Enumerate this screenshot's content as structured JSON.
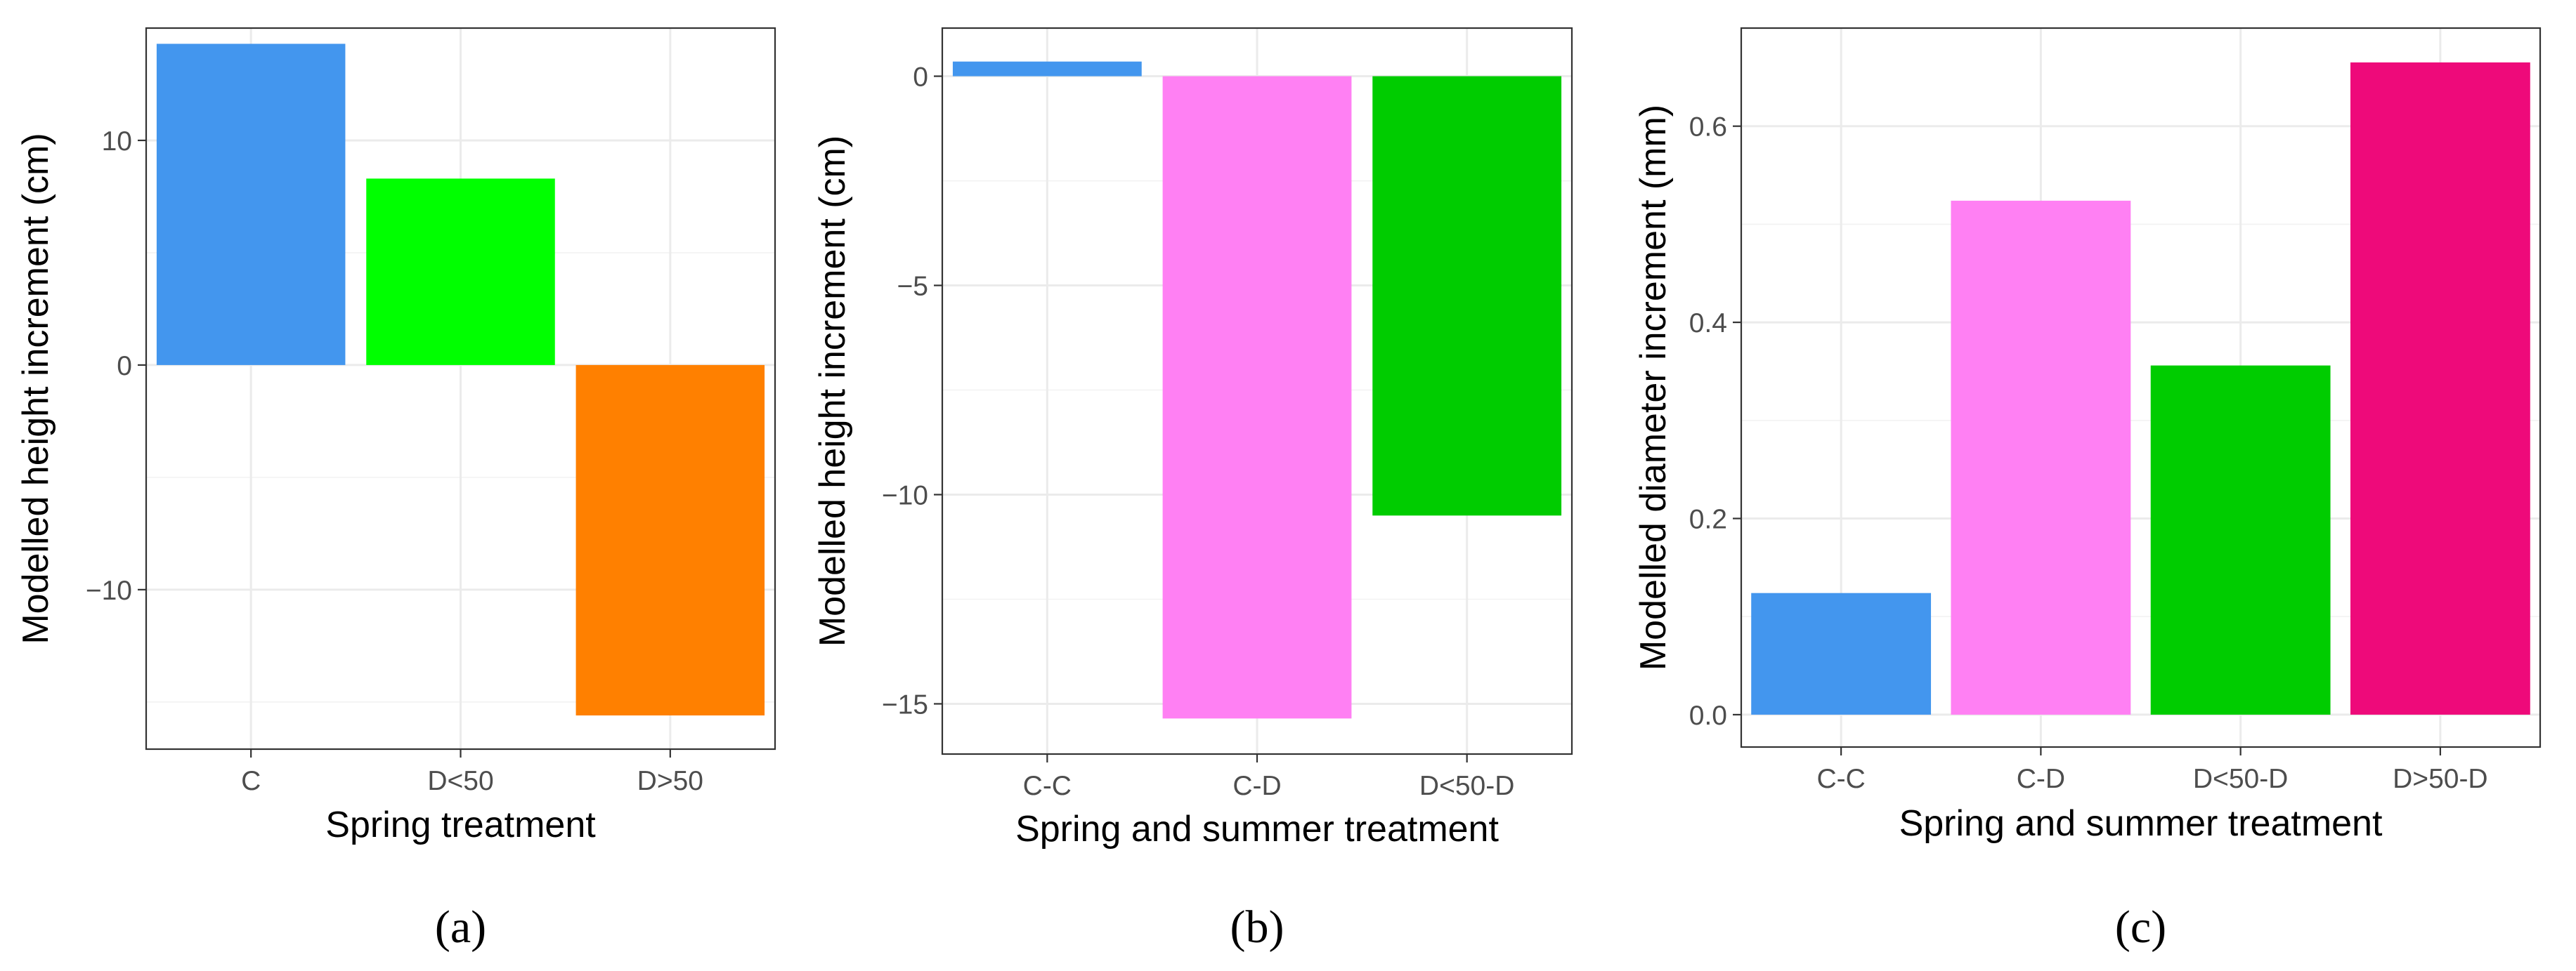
{
  "chart_data": [
    {
      "type": "bar",
      "panel_label": "(a)",
      "categories": [
        "C",
        "D<50",
        "D>50"
      ],
      "values": [
        14.3,
        8.3,
        -15.6
      ],
      "colors": [
        "#4396EE",
        "#00FF00",
        "#FF8000"
      ],
      "xlabel": "Spring treatment",
      "ylabel": "Modelled height increment (cm)",
      "ylim": [
        -17.1,
        15.0
      ],
      "yticks": [
        -10,
        0,
        10
      ],
      "ytick_labels": [
        "−10",
        "0",
        "10"
      ],
      "grid": true
    },
    {
      "type": "bar",
      "panel_label": "(b)",
      "categories": [
        "C-C",
        "C-D",
        "D<50-D"
      ],
      "values": [
        0.35,
        -15.35,
        -10.5
      ],
      "colors": [
        "#4396EE",
        "#FF80F3",
        "#00CC00"
      ],
      "xlabel": "Spring and summer treatment",
      "ylabel": "Modelled height increment (cm)",
      "ylim": [
        -16.2,
        1.15
      ],
      "yticks": [
        -15,
        -10,
        -5,
        0
      ],
      "ytick_labels": [
        "−15",
        "−10",
        "−5",
        "0"
      ],
      "grid": true
    },
    {
      "type": "bar",
      "panel_label": "(c)",
      "categories": [
        "C-C",
        "C-D",
        "D<50-D",
        "D>50-D"
      ],
      "values": [
        0.124,
        0.524,
        0.356,
        0.665
      ],
      "colors": [
        "#4396EE",
        "#FF80F3",
        "#00CC00",
        "#EE0A7A"
      ],
      "xlabel": "Spring and summer treatment",
      "ylabel": "Modelled diameter increment (mm)",
      "ylim": [
        -0.033,
        0.7
      ],
      "yticks": [
        0.0,
        0.2,
        0.4,
        0.6
      ],
      "ytick_labels": [
        "0.0",
        "0.2",
        "0.4",
        "0.6"
      ],
      "grid": true
    }
  ]
}
